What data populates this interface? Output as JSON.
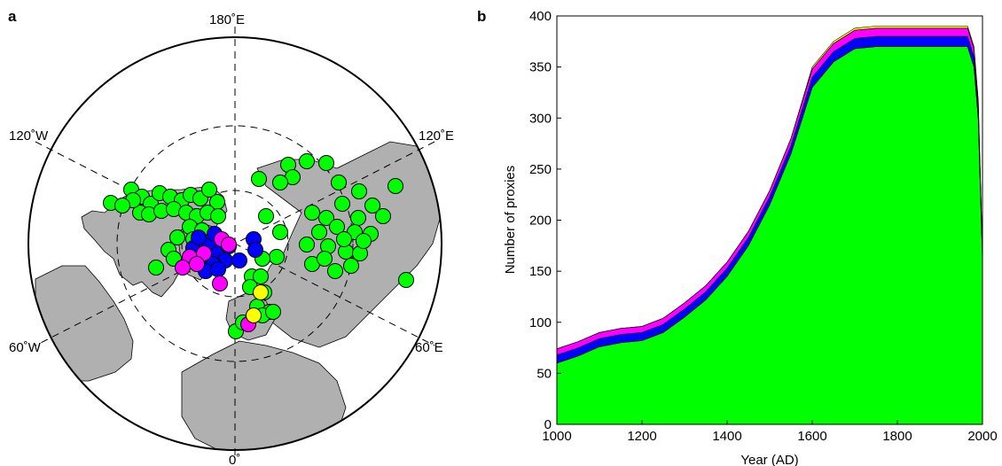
{
  "panel_a": {
    "label": "a",
    "lon_labels": {
      "top": "180˚E",
      "upper_left": "120˚W",
      "upper_right": "120˚E",
      "lower_left": "60˚W",
      "lower_right": "60˚E",
      "bottom": "0˚"
    },
    "colors": {
      "land": "#b0b0b0",
      "green": "#00ff00",
      "blue": "#0000ff",
      "magenta": "#ff00ff",
      "yellow": "#ffff00"
    }
  },
  "panel_b": {
    "label": "b"
  },
  "chart_data": [
    {
      "type": "scatter",
      "description_type": "polar stereographic map of proxy locations (north-polar projection)",
      "marker_groups": [
        {
          "color": "green",
          "count_visible": "majority"
        },
        {
          "color": "blue",
          "count_visible": 14
        },
        {
          "color": "magenta",
          "count_visible": 8
        },
        {
          "color": "yellow",
          "count_visible": 2
        }
      ]
    },
    {
      "type": "area",
      "stacked": true,
      "xlabel": "Year (AD)",
      "ylabel": "Number of proxies",
      "xlim": [
        1000,
        2000
      ],
      "ylim": [
        0,
        400
      ],
      "xticks": [
        "1000",
        "1200",
        "1400",
        "1600",
        "1800",
        "2000"
      ],
      "yticks": [
        "0",
        "50",
        "100",
        "150",
        "200",
        "250",
        "300",
        "350",
        "400"
      ],
      "x": [
        1000,
        1050,
        1100,
        1150,
        1200,
        1250,
        1300,
        1350,
        1400,
        1450,
        1500,
        1550,
        1600,
        1650,
        1700,
        1750,
        1800,
        1850,
        1900,
        1950,
        1965,
        1980,
        1990,
        2000
      ],
      "series": [
        {
          "color": "#00ff00",
          "values": [
            60,
            67,
            76,
            80,
            82,
            90,
            105,
            122,
            145,
            175,
            215,
            265,
            330,
            355,
            368,
            370,
            370,
            370,
            370,
            370,
            370,
            350,
            300,
            160
          ]
        },
        {
          "color": "#0000ff",
          "values": [
            8,
            8,
            8,
            8,
            8,
            8,
            8,
            8,
            8,
            8,
            8,
            8,
            10,
            10,
            10,
            10,
            10,
            10,
            10,
            10,
            10,
            10,
            9,
            5
          ]
        },
        {
          "color": "#ff00ff",
          "values": [
            6,
            6,
            6,
            6,
            6,
            6,
            6,
            6,
            6,
            6,
            6,
            7,
            8,
            8,
            8,
            8,
            8,
            8,
            8,
            8,
            8,
            8,
            7,
            4
          ]
        },
        {
          "color": "#ffff00",
          "values": [
            0,
            0,
            0,
            0,
            0,
            0,
            0,
            0,
            0,
            0,
            0,
            0,
            2,
            2,
            2,
            2,
            2,
            2,
            2,
            2,
            2,
            2,
            2,
            1
          ]
        }
      ]
    }
  ]
}
